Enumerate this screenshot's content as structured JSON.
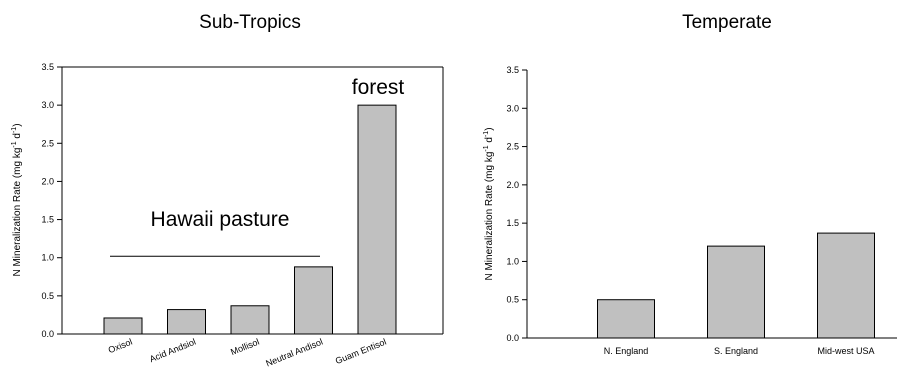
{
  "chart_data": [
    {
      "type": "bar",
      "title": "Sub-Tropics",
      "ylabel": "N Mineralization Rate (mg kg",
      "ylabel_sup1": "-1",
      "ylabel_mid": " d",
      "ylabel_sup2": "-1",
      "ylabel_end": ")",
      "categories": [
        "Oxisol",
        "Acid Andsiol",
        "Mollisol",
        "Neutral Andisol",
        "Guam Entisol"
      ],
      "values": [
        0.21,
        0.32,
        0.37,
        0.88,
        3.0
      ],
      "ylim": [
        0,
        3.5
      ],
      "yticks": [
        "0.0",
        "0.5",
        "1.0",
        "1.5",
        "2.0",
        "2.5",
        "3.0",
        "3.5"
      ],
      "annotations": {
        "pasture": "Hawaii pasture",
        "forest": "forest",
        "pasture_line_y": 1.02
      }
    },
    {
      "type": "bar",
      "title": "Temperate",
      "ylabel": "N Mineralization Rate (mg kg",
      "ylabel_sup1": "-1",
      "ylabel_mid": " d",
      "ylabel_sup2": "-1",
      "ylabel_end": ")",
      "categories": [
        "N. England",
        "S. England",
        "Mid-west USA"
      ],
      "values": [
        0.5,
        1.2,
        1.37
      ],
      "ylim": [
        0,
        3.5
      ],
      "yticks": [
        "0.0",
        "0.5",
        "1.0",
        "1.5",
        "2.0",
        "2.5",
        "3.0",
        "3.5"
      ]
    }
  ]
}
